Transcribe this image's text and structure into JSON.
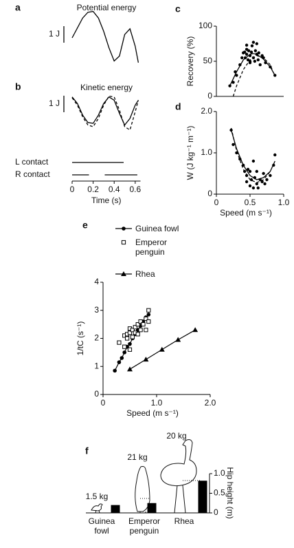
{
  "chart_data": [
    {
      "type": "line",
      "label": "a",
      "title": "Potential energy",
      "scale_bar": {
        "value": 1,
        "label": "1 J"
      },
      "xlim": [
        0,
        0.65
      ],
      "x": [
        0,
        0.05,
        0.1,
        0.15,
        0.2,
        0.25,
        0.3,
        0.35,
        0.4,
        0.45,
        0.5,
        0.55,
        0.6,
        0.63
      ],
      "series": [
        {
          "color": "#000000",
          "dash": false,
          "values": [
            0,
            0.6,
            1.2,
            1.55,
            1.6,
            1.2,
            0.4,
            -0.6,
            -1.4,
            -1.1,
            0.2,
            0.55,
            -0.5,
            -1.5
          ]
        }
      ]
    },
    {
      "type": "line",
      "label": "b",
      "title": "Kinetic energy",
      "scale_bar": {
        "value": 1,
        "label": "1 J"
      },
      "xlim": [
        0,
        0.65
      ],
      "xticks": [
        0,
        0.2,
        0.4,
        0.6
      ],
      "xlabel": "Time (s)",
      "x": [
        0,
        0.05,
        0.1,
        0.15,
        0.2,
        0.25,
        0.3,
        0.35,
        0.4,
        0.45,
        0.5,
        0.55,
        0.6,
        0.63
      ],
      "series": [
        {
          "color": "#000000",
          "dash": false,
          "values": [
            0.8,
            0.4,
            -0.3,
            -0.75,
            -0.8,
            -0.3,
            0.4,
            0.8,
            0.6,
            -0.2,
            -0.9,
            -0.5,
            0.3,
            0.6
          ]
        },
        {
          "color": "#000000",
          "dash": true,
          "values": [
            0.75,
            0.3,
            -0.4,
            -0.9,
            -1.0,
            -0.5,
            0.3,
            0.85,
            0.8,
            0.0,
            -1.0,
            -1.2,
            -0.1,
            0.6
          ]
        }
      ],
      "contacts": [
        {
          "name": "L contact",
          "intervals": [
            [
              0,
              0.49
            ]
          ]
        },
        {
          "name": "R contact",
          "intervals": [
            [
              0,
              0.16
            ],
            [
              0.31,
              0.62
            ]
          ]
        }
      ]
    },
    {
      "type": "scatter",
      "label": "c",
      "ylabel": "Recovery (%)",
      "xlim": [
        0,
        1
      ],
      "ylim": [
        0,
        100
      ],
      "yticks": [
        0,
        50,
        100
      ],
      "points": {
        "x": [
          0.2,
          0.25,
          0.28,
          0.3,
          0.35,
          0.38,
          0.4,
          0.42,
          0.43,
          0.45,
          0.45,
          0.47,
          0.48,
          0.5,
          0.5,
          0.52,
          0.53,
          0.55,
          0.55,
          0.57,
          0.58,
          0.6,
          0.6,
          0.62,
          0.63,
          0.65,
          0.68,
          0.7,
          0.73,
          0.8,
          0.87,
          0.45,
          0.5
        ],
        "values": [
          15,
          20,
          35,
          30,
          45,
          55,
          62,
          63,
          55,
          60,
          67,
          52,
          65,
          48,
          58,
          63,
          72,
          55,
          77,
          50,
          65,
          75,
          60,
          52,
          62,
          45,
          58,
          55,
          48,
          42,
          30,
          73,
          50
        ]
      },
      "fits": [
        {
          "dash": false,
          "x": [
            0.2,
            0.3,
            0.4,
            0.5,
            0.55,
            0.6,
            0.7,
            0.8,
            0.87
          ],
          "values": [
            15,
            35,
            52,
            60,
            61,
            60,
            53,
            42,
            30
          ]
        },
        {
          "dash": true,
          "x": [
            0.25,
            0.3,
            0.4,
            0.5,
            0.6,
            0.7,
            0.8,
            0.85
          ],
          "values": [
            0,
            15,
            38,
            52,
            58,
            55,
            45,
            33
          ]
        }
      ]
    },
    {
      "type": "scatter",
      "label": "d",
      "ylabel": "W (J kg⁻¹ m⁻¹)",
      "xlabel": "Speed (m s⁻¹)",
      "xlim": [
        0,
        1
      ],
      "xticks": [
        0,
        0.5,
        {
          "value": 1,
          "label": "1.0"
        }
      ],
      "ylim": [
        0,
        2
      ],
      "yticks": [
        0,
        {
          "value": 1,
          "label": "1.0"
        },
        {
          "value": 2,
          "label": "2.0"
        }
      ],
      "points": {
        "x": [
          0.22,
          0.25,
          0.3,
          0.35,
          0.4,
          0.45,
          0.45,
          0.47,
          0.5,
          0.5,
          0.52,
          0.55,
          0.55,
          0.57,
          0.6,
          0.6,
          0.62,
          0.65,
          0.68,
          0.7,
          0.72,
          0.75,
          0.8,
          0.85,
          0.87,
          0.42
        ],
        "values": [
          1.55,
          1.2,
          1.0,
          0.85,
          0.7,
          0.3,
          0.45,
          0.6,
          0.2,
          0.55,
          0.35,
          0.8,
          0.15,
          0.4,
          0.25,
          0.55,
          0.15,
          0.35,
          0.3,
          0.5,
          0.25,
          0.35,
          0.45,
          0.7,
          0.95,
          0.55
        ]
      },
      "fits": [
        {
          "dash": false,
          "x": [
            0.22,
            0.3,
            0.4,
            0.5,
            0.6,
            0.7,
            0.8,
            0.87
          ],
          "values": [
            1.55,
            1.1,
            0.7,
            0.45,
            0.35,
            0.4,
            0.55,
            0.8
          ]
        },
        {
          "dash": true,
          "x": [
            0.22,
            0.3,
            0.4,
            0.5,
            0.6,
            0.7,
            0.8
          ],
          "values": [
            1.6,
            1.05,
            0.6,
            0.35,
            0.28,
            0.35,
            0.55
          ]
        }
      ]
    },
    {
      "type": "scatter",
      "label": "e",
      "ylabel": "1/tC (s⁻¹)",
      "xlabel": "Speed (m s⁻¹)",
      "xlim": [
        0,
        2
      ],
      "xticks": [
        0,
        {
          "value": 1,
          "label": "1.0"
        },
        {
          "value": 2,
          "label": "2.0"
        }
      ],
      "ylim": [
        0,
        4
      ],
      "yticks": [
        0,
        1,
        2,
        3,
        4
      ],
      "series": [
        {
          "name": "Guinea fowl",
          "marker": "circle",
          "line": true,
          "color": "#000000",
          "x": [
            0.22,
            0.3,
            0.35,
            0.4,
            0.45,
            0.5,
            0.55,
            0.6,
            0.65,
            0.7,
            0.75,
            0.8,
            0.85
          ],
          "values": [
            0.85,
            1.15,
            1.3,
            1.5,
            1.7,
            1.8,
            2.0,
            2.15,
            2.3,
            2.45,
            2.6,
            2.75,
            2.85
          ]
        },
        {
          "name": "Emperor penguin",
          "marker": "square",
          "line": false,
          "color": "#000000",
          "x": [
            0.3,
            0.4,
            0.45,
            0.45,
            0.5,
            0.5,
            0.55,
            0.55,
            0.6,
            0.6,
            0.65,
            0.65,
            0.7,
            0.7,
            0.75,
            0.8,
            0.8,
            0.85,
            0.85,
            0.4,
            0.5
          ],
          "values": [
            1.85,
            2.1,
            2.0,
            2.15,
            2.2,
            2.35,
            2.3,
            2.05,
            2.4,
            2.2,
            2.5,
            2.15,
            2.6,
            2.3,
            2.5,
            2.7,
            2.3,
            3.0,
            2.6,
            1.7,
            1.6
          ]
        },
        {
          "name": "Rhea",
          "marker": "triangle",
          "line": true,
          "color": "#000000",
          "x": [
            0.5,
            0.8,
            1.1,
            1.4,
            1.72
          ],
          "values": [
            0.9,
            1.25,
            1.6,
            1.95,
            2.3
          ]
        }
      ]
    },
    {
      "type": "bar",
      "label": "f",
      "ylabel": "Hip height (m)",
      "categories": [
        "Guinea fowl",
        "Emperor penguin",
        "Rhea"
      ],
      "masses": [
        "1.5 kg",
        "21 kg",
        "20 kg"
      ],
      "values": [
        0.2,
        0.25,
        0.82
      ],
      "color": "#000000",
      "ylim": [
        0,
        1
      ],
      "yticks": [
        0,
        0.5,
        {
          "value": 1,
          "label": "1.0"
        }
      ]
    }
  ]
}
